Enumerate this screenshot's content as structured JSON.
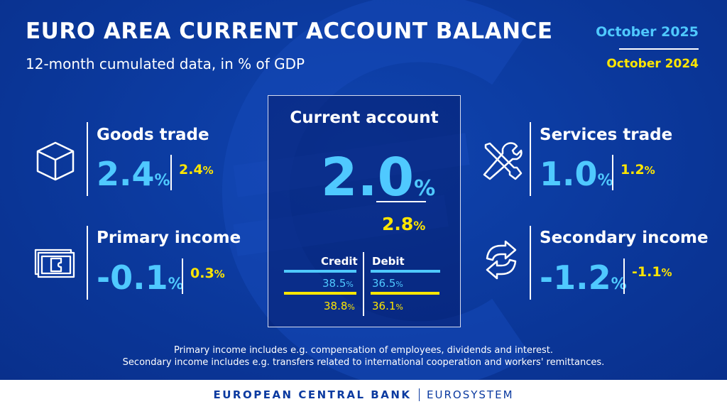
{
  "header": {
    "title": "EURO AREA CURRENT ACCOUNT BALANCE",
    "subtitle": "12-month cumulated data, in % of GDP"
  },
  "legend": {
    "current_period": "October 2025",
    "previous_period": "October 2024"
  },
  "colors": {
    "background": "#0b3aa0",
    "current": "#4fc9ff",
    "previous": "#ffe600",
    "text": "#ffffff"
  },
  "pct": "%",
  "goods_trade": {
    "label": "Goods trade",
    "icon": "box-icon",
    "current": "2.4",
    "previous": "2.4"
  },
  "primary_income": {
    "label": "Primary income",
    "icon": "banknote-icon",
    "current": "-0.1",
    "previous": "0.3"
  },
  "services_trade": {
    "label": "Services trade",
    "icon": "tools-icon",
    "current": "1.0",
    "previous": "1.2"
  },
  "secondary_income": {
    "label": "Secondary income",
    "icon": "transfer-arrows-icon",
    "current": "-1.2",
    "previous": "-1.1"
  },
  "current_account": {
    "label": "Current account",
    "current": "2.0",
    "previous": "2.8",
    "credit": {
      "label": "Credit",
      "current": "38.5",
      "previous": "38.8"
    },
    "debit": {
      "label": "Debit",
      "current": "36.5",
      "previous": "36.1"
    }
  },
  "notes": {
    "line1": "Primary income includes e.g. compensation of employees, dividends and interest.",
    "line2": "Secondary income includes e.g. transfers related to international cooperation and workers' remittances."
  },
  "footer": {
    "org": "EUROPEAN CENTRAL BANK",
    "system": "EUROSYSTEM"
  }
}
